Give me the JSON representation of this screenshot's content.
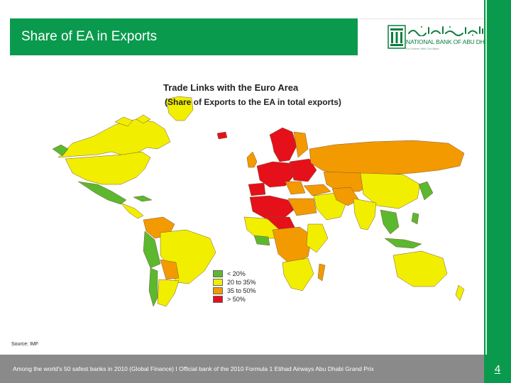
{
  "header": {
    "title": "Share of EA in Exports",
    "accent_color": "#0a9a4e"
  },
  "logo": {
    "name_en": "NATIONAL BANK OF ABU DHABI",
    "arabic_script": "بنك أبوظبي الوطني",
    "tagline": "Go Further With Our Bank"
  },
  "map": {
    "title": "Trade Links with the Euro Area",
    "subtitle": "(Share of Exports to the EA in total exports)",
    "legend": [
      {
        "label": "< 20%",
        "color": "#5cb82f"
      },
      {
        "label": "20 to 35%",
        "color": "#f2ee00"
      },
      {
        "label": "35 to 50%",
        "color": "#f39a00"
      },
      {
        "label": "> 50%",
        "color": "#e5101a"
      }
    ]
  },
  "source": "Source: IMF",
  "footer": {
    "text": "Among the world's 50 safest banks in 2010 (Global Finance) I Official bank of the 2010 Formula 1 Etihad Airways Abu Dhabi Grand Prix",
    "page_number": "4"
  }
}
